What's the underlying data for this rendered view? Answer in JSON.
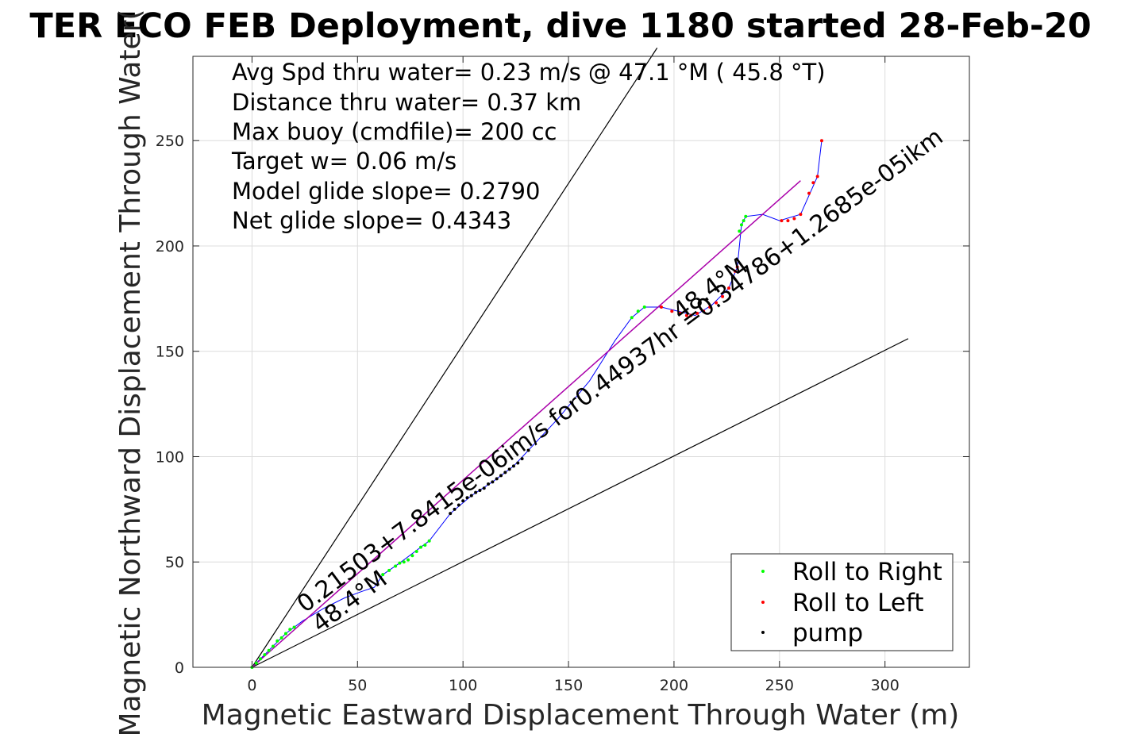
{
  "chart_data": {
    "type": "scatter",
    "title": "TER ECO FEB Deployment, dive 1180 started 28-Feb-20",
    "xlabel": "Magnetic Eastward Displacement Through Water (m)",
    "ylabel": "Magnetic Northward Displacement Through Water(",
    "xlim": [
      -28,
      340
    ],
    "ylim": [
      0,
      290
    ],
    "xticks": [
      0,
      50,
      100,
      150,
      200,
      250,
      300
    ],
    "yticks": [
      0,
      50,
      100,
      150,
      200,
      250
    ],
    "grid": true,
    "legend_position": "bottom-right",
    "annotations": [
      "Avg Spd thru water=  0.23 m/s @  47.1 °M ( 45.8 °T)",
      "Distance thru water=  0.37 km",
      "Max buoy (cmdfile)= 200 cc",
      "Target w= 0.06 m/s",
      "Model glide slope= 0.2790",
      "Net glide slope= 0.4343"
    ],
    "rotated_labels": {
      "track_equation": "0.21503+7.8415e-06im/s for0.44937hr =0.34786+1.2685e-05ikm",
      "heading_upper": "48.4°M",
      "heading_lower": "48.4°M"
    },
    "series": [
      {
        "name": "Roll to Right",
        "color": "#00ff00",
        "points": [
          [
            0,
            0
          ],
          [
            2,
            2
          ],
          [
            4,
            4
          ],
          [
            6,
            6
          ],
          [
            8,
            8
          ],
          [
            10,
            10
          ],
          [
            12,
            12.5
          ],
          [
            14,
            14
          ],
          [
            16,
            16
          ],
          [
            18,
            18
          ],
          [
            20,
            19
          ],
          [
            62,
            44
          ],
          [
            65,
            46
          ],
          [
            68,
            48
          ],
          [
            70,
            49.5
          ],
          [
            72,
            50
          ],
          [
            74,
            51
          ],
          [
            76,
            53
          ],
          [
            78,
            55
          ],
          [
            80,
            57
          ],
          [
            82,
            58
          ],
          [
            84,
            60
          ],
          [
            180,
            166
          ],
          [
            183,
            169
          ],
          [
            186,
            171
          ],
          [
            231,
            207
          ],
          [
            232,
            210
          ],
          [
            233,
            212
          ],
          [
            234,
            214
          ]
        ]
      },
      {
        "name": "Roll to Left",
        "color": "#ff0000",
        "points": [
          [
            194,
            171
          ],
          [
            199,
            169
          ],
          [
            203,
            168
          ],
          [
            206,
            167
          ],
          [
            208,
            167
          ],
          [
            211,
            168
          ],
          [
            214,
            169
          ],
          [
            217,
            171
          ],
          [
            220,
            173
          ],
          [
            223,
            176
          ],
          [
            226,
            180
          ],
          [
            229,
            188
          ],
          [
            230,
            190
          ],
          [
            251,
            212
          ],
          [
            254,
            212
          ],
          [
            257,
            213
          ],
          [
            260,
            215
          ],
          [
            264,
            225
          ],
          [
            266,
            230
          ],
          [
            268,
            233
          ],
          [
            270,
            250
          ]
        ]
      },
      {
        "name": "pump",
        "color": "#000000",
        "points": [
          [
            94,
            73
          ],
          [
            96,
            75
          ],
          [
            98,
            77
          ],
          [
            100,
            79
          ],
          [
            102,
            80.5
          ],
          [
            104,
            81.5
          ],
          [
            106,
            83
          ],
          [
            108,
            84
          ],
          [
            110,
            85
          ],
          [
            112,
            87
          ],
          [
            114,
            88
          ],
          [
            116,
            89.5
          ],
          [
            118,
            91
          ],
          [
            120,
            92.5
          ],
          [
            122,
            94
          ],
          [
            124,
            95.5
          ],
          [
            126,
            97
          ],
          [
            128,
            99
          ],
          [
            131,
            103
          ]
        ]
      }
    ],
    "track": {
      "color": "#0000ff",
      "points": [
        [
          0,
          0
        ],
        [
          8,
          8
        ],
        [
          16,
          16
        ],
        [
          24,
          22
        ],
        [
          34,
          28
        ],
        [
          44,
          33
        ],
        [
          52,
          36
        ],
        [
          58,
          38
        ],
        [
          62,
          44
        ],
        [
          70,
          49.5
        ],
        [
          84,
          60
        ],
        [
          94,
          73
        ],
        [
          104,
          81.5
        ],
        [
          114,
          88
        ],
        [
          124,
          95.5
        ],
        [
          131,
          103
        ],
        [
          145,
          118
        ],
        [
          160,
          136
        ],
        [
          172,
          155
        ],
        [
          180,
          166
        ],
        [
          186,
          171
        ],
        [
          194,
          171
        ],
        [
          202,
          169
        ],
        [
          210,
          167
        ],
        [
          218,
          172
        ],
        [
          226,
          180
        ],
        [
          230,
          190
        ],
        [
          231,
          200
        ],
        [
          232,
          210
        ],
        [
          234,
          214
        ],
        [
          242,
          215
        ],
        [
          250,
          212
        ],
        [
          260,
          215
        ],
        [
          268,
          233
        ],
        [
          270,
          250
        ]
      ]
    },
    "fit_line": {
      "color": "#aa00aa",
      "points": [
        [
          0,
          0
        ],
        [
          260,
          231
        ]
      ]
    },
    "black_lines": [
      {
        "points": [
          [
            0,
            0
          ],
          [
            192,
            294
          ]
        ]
      },
      {
        "points": [
          [
            0,
            0
          ],
          [
            311,
            156
          ]
        ]
      }
    ]
  }
}
